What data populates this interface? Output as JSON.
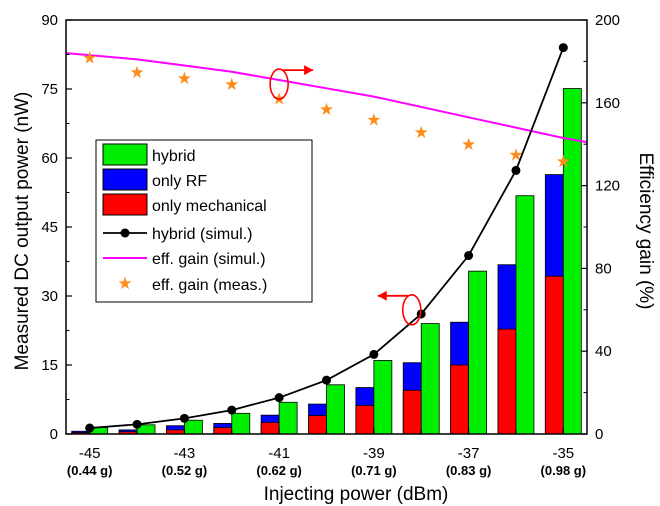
{
  "chart_data": {
    "type": "bar",
    "xlabel": "Injecting power (dBm)",
    "ylabel": "Measured DC output power (nW)",
    "y2label": "Efficiency gain (%)",
    "xlim": [
      -45.5,
      -34.5
    ],
    "ylim": [
      0,
      90
    ],
    "y2lim": [
      0,
      200
    ],
    "x_ticks": [
      -45,
      -43,
      -41,
      -39,
      -37,
      -35
    ],
    "x_tick_labels": [
      "-45",
      "-43",
      "-41",
      "-39",
      "-37",
      "-35"
    ],
    "x_sub_labels": [
      "(0.44 g)",
      "(0.52 g)",
      "(0.62 g)",
      "(0.71 g)",
      "(0.83 g)",
      "(0.98 g)"
    ],
    "y_ticks": [
      0,
      15,
      30,
      45,
      60,
      75,
      90
    ],
    "y_tick_labels": [
      "0",
      "15",
      "30",
      "45",
      "60",
      "75",
      "90"
    ],
    "y2_ticks": [
      0,
      40,
      80,
      120,
      160,
      200
    ],
    "y2_tick_labels": [
      "0",
      "40",
      "80",
      "120",
      "160",
      "200"
    ],
    "x": [
      -45,
      -44,
      -43,
      -42,
      -41,
      -40,
      -39,
      -38,
      -37,
      -36,
      -35
    ],
    "legend_position": "left",
    "colors": {
      "hybrid": "#00ee00",
      "only_rf": "#0000ff",
      "only_mechanical": "#ff0000",
      "simul_line": "#000000",
      "eff_simul": "#ff00ff",
      "eff_meas": "#ff8c1a",
      "annotation": "#ff0000"
    },
    "series": [
      {
        "name": "hybrid",
        "kind": "bar",
        "axis": "left",
        "values": [
          1.4,
          2.0,
          3.0,
          4.5,
          6.9,
          10.7,
          16.0,
          24.0,
          35.4,
          51.8,
          75.1
        ]
      },
      {
        "name": "only RF",
        "kind": "bar-stack-top",
        "axis": "left",
        "values": [
          0.6,
          0.9,
          1.8,
          2.3,
          4.1,
          6.5,
          10.1,
          15.5,
          24.3,
          36.8,
          56.4
        ]
      },
      {
        "name": "only mechanical",
        "kind": "bar-stack-bottom",
        "axis": "left",
        "values": [
          0.3,
          0.5,
          0.9,
          1.4,
          2.5,
          4.0,
          6.2,
          9.5,
          15.0,
          22.8,
          34.3
        ]
      },
      {
        "name": "hybrid (simul.)",
        "kind": "line-marker",
        "axis": "left",
        "values": [
          1.3,
          2.1,
          3.4,
          5.2,
          7.9,
          11.7,
          17.3,
          26.1,
          38.8,
          57.3,
          84.0
        ]
      },
      {
        "name": "eff. gain (simul.)",
        "kind": "line",
        "axis": "right",
        "x": [
          -45.5,
          -44,
          -43,
          -42,
          -41,
          -40,
          -39,
          -38,
          -37,
          -36,
          -35,
          -34.5
        ],
        "values": [
          184,
          181,
          178,
          175,
          171,
          167,
          163,
          158,
          153,
          148,
          143,
          141
        ]
      },
      {
        "name": "eff. gain (meas.)",
        "kind": "scatter-star",
        "axis": "right",
        "values": [
          182,
          175,
          172,
          169,
          162,
          157,
          152,
          146,
          140,
          135,
          132
        ]
      }
    ]
  }
}
